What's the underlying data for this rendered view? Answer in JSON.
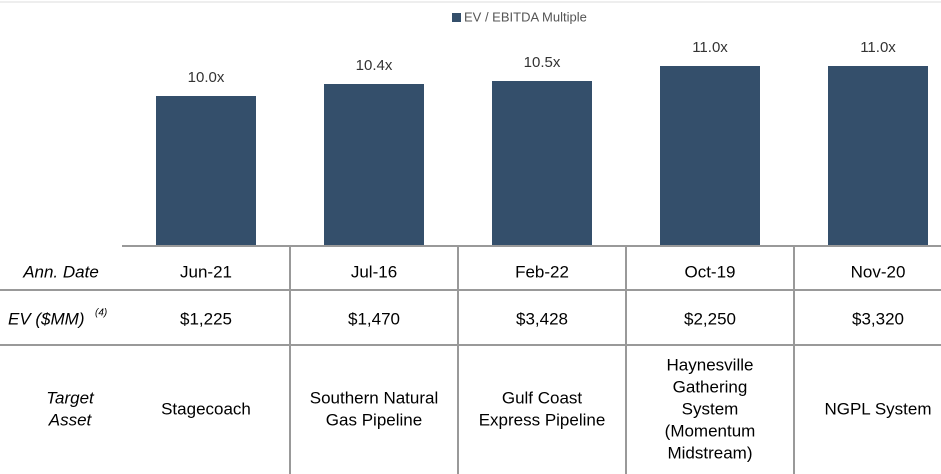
{
  "chart_data": {
    "type": "bar",
    "legend": "EV / EBITDA Multiple",
    "color": "#344f6b",
    "values": [
      10.0,
      10.4,
      10.5,
      11.0,
      11.0
    ],
    "value_labels": [
      "10.0x",
      "10.4x",
      "10.5x",
      "11.0x",
      "11.0x"
    ],
    "ylim": [
      5,
      12
    ]
  },
  "table": {
    "row_labels": [
      {
        "text": "Ann. Date"
      },
      {
        "text": "EV ($MM)",
        "note": "(4)"
      },
      {
        "lines": [
          "Target",
          "Asset"
        ]
      }
    ],
    "dates": [
      "Jun-21",
      "Jul-16",
      "Feb-22",
      "Oct-19",
      "Nov-20"
    ],
    "ev": [
      "$1,225",
      "$1,470",
      "$3,428",
      "$2,250",
      "$3,320"
    ],
    "assets": [
      [
        "Stagecoach"
      ],
      [
        "Southern Natural",
        "Gas Pipeline"
      ],
      [
        "Gulf Coast",
        "Express Pipeline"
      ],
      [
        "Haynesville",
        "Gathering",
        "System",
        "(Momentum",
        "Midstream)"
      ],
      [
        "NGPL System"
      ]
    ]
  }
}
